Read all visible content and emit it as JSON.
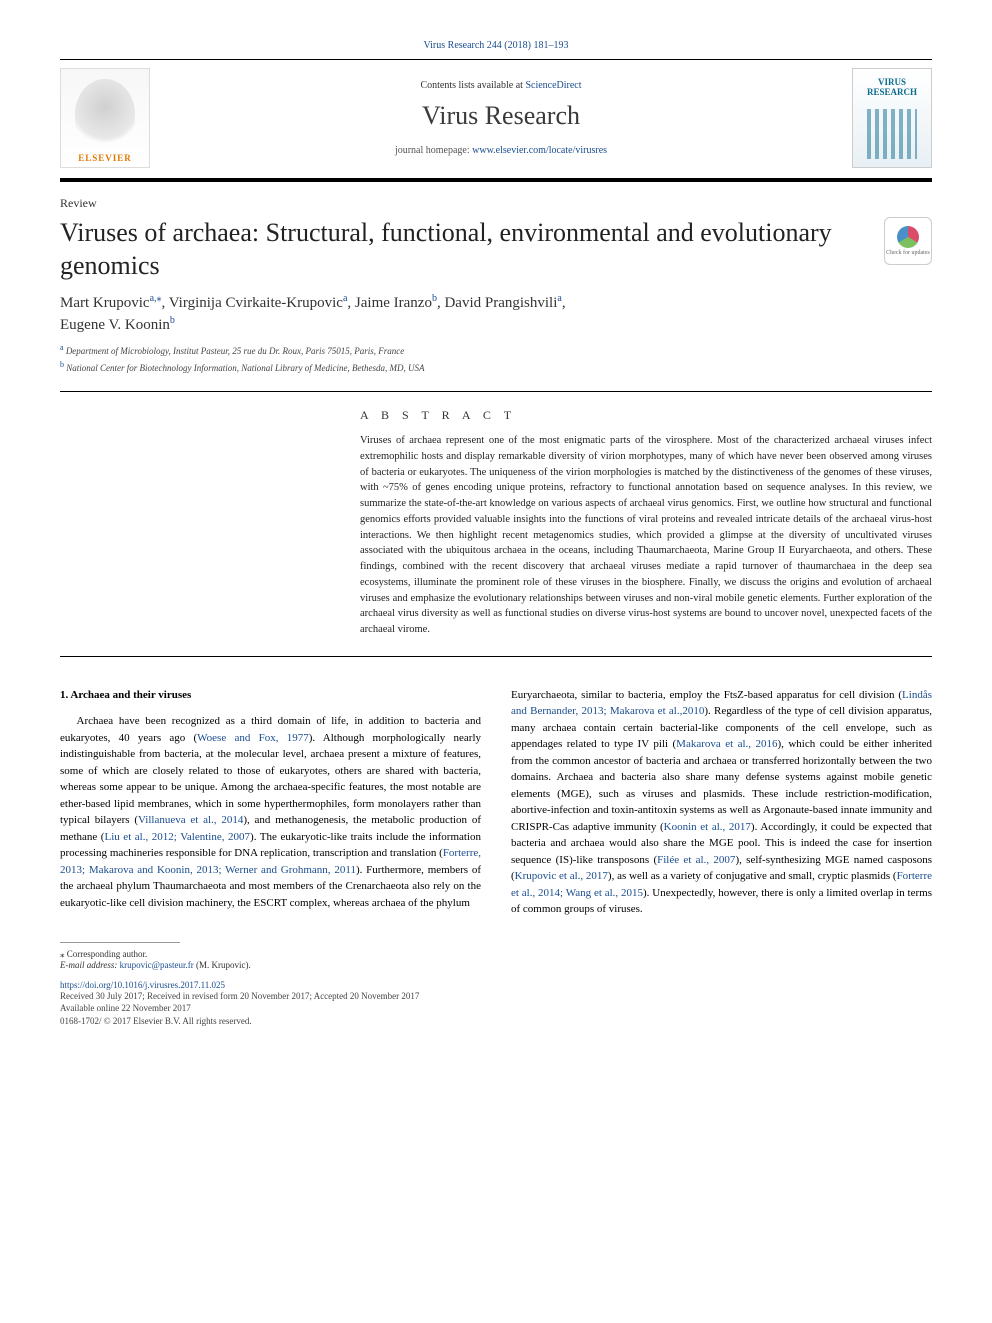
{
  "top_citation": "Virus Research 244 (2018) 181–193",
  "header": {
    "contents_text": "Contents lists available at ",
    "contents_link": "ScienceDirect",
    "journal_name": "Virus Research",
    "homepage_text": "journal homepage: ",
    "homepage_link": "www.elsevier.com/locate/virusres",
    "publisher_name": "ELSEVIER",
    "cover_line1": "VIRUS",
    "cover_line2": "RESEARCH"
  },
  "article": {
    "type": "Review",
    "title": "Viruses of archaea: Structural, functional, environmental and evolutionary genomics",
    "check_updates_label": "Check for updates"
  },
  "authors": {
    "a1_name": "Mart Krupovic",
    "a1_aff": "a,",
    "a1_corr": "⁎",
    "a2_name": ", Virginija Cvirkaite-Krupovic",
    "a2_aff": "a",
    "a3_name": ", Jaime Iranzo",
    "a3_aff": "b",
    "a4_name": ", David Prangishvili",
    "a4_aff": "a",
    "a5_name": "Eugene V. Koonin",
    "a5_aff": "b"
  },
  "affiliations": {
    "a_label": "a",
    "a_text": " Department of Microbiology, Institut Pasteur, 25 rue du Dr. Roux, Paris 75015, Paris, France",
    "b_label": "b",
    "b_text": " National Center for Biotechnology Information, National Library of Medicine, Bethesda, MD, USA"
  },
  "abstract": {
    "heading": "A B S T R A C T",
    "text": "Viruses of archaea represent one of the most enigmatic parts of the virosphere. Most of the characterized archaeal viruses infect extremophilic hosts and display remarkable diversity of virion morphotypes, many of which have never been observed among viruses of bacteria or eukaryotes. The uniqueness of the virion morphologies is matched by the distinctiveness of the genomes of these viruses, with ~75% of genes encoding unique proteins, refractory to functional annotation based on sequence analyses. In this review, we summarize the state-of-the-art knowledge on various aspects of archaeal virus genomics. First, we outline how structural and functional genomics efforts provided valuable insights into the functions of viral proteins and revealed intricate details of the archaeal virus-host interactions. We then highlight recent metagenomics studies, which provided a glimpse at the diversity of uncultivated viruses associated with the ubiquitous archaea in the oceans, including Thaumarchaeota, Marine Group II Euryarchaeota, and others. These findings, combined with the recent discovery that archaeal viruses mediate a rapid turnover of thaumarchaea in the deep sea ecosystems, illuminate the prominent role of these viruses in the biosphere. Finally, we discuss the origins and evolution of archaeal viruses and emphasize the evolutionary relationships between viruses and non-viral mobile genetic elements. Further exploration of the archaeal virus diversity as well as functional studies on diverse virus-host systems are bound to uncover novel, unexpected facets of the archaeal virome."
  },
  "body": {
    "section1_heading": "1. Archaea and their viruses",
    "col1_p1_a": "Archaea have been recognized as a third domain of life, in addition to bacteria and eukaryotes, 40 years ago (",
    "col1_cite1": "Woese and Fox, 1977",
    "col1_p1_b": "). Although morphologically nearly indistinguishable from bacteria, at the molecular level, archaea present a mixture of features, some of which are closely related to those of eukaryotes, others are shared with bacteria, whereas some appear to be unique. Among the archaea-specific features, the most notable are ether-based lipid membranes, which in some hyperthermophiles, form monolayers rather than typical bilayers (",
    "col1_cite2": "Villanueva et al., 2014",
    "col1_p1_c": "), and methanogenesis, the metabolic production of methane (",
    "col1_cite3": "Liu et al., 2012; Valentine, 2007",
    "col1_p1_d": "). The eukaryotic-like traits include the information processing machineries responsible for DNA replication, transcription and translation (",
    "col1_cite4": "Forterre, 2013; Makarova and Koonin, 2013; Werner and Grohmann, 2011",
    "col1_p1_e": "). Furthermore, members of the archaeal phylum Thaumarchaeota and most members of the Crenarchaeota also rely on the eukaryotic-like cell division machinery, the ESCRT complex, whereas archaea of the phylum",
    "col2_p1_a": "Euryarchaeota, similar to bacteria, employ the FtsZ-based apparatus for cell division (",
    "col2_cite1": "Lindås and Bernander, 2013; Makarova et al.,2010",
    "col2_p1_b": "). Regardless of the type of cell division apparatus, many archaea contain certain bacterial-like components of the cell envelope, such as appendages related to type IV pili (",
    "col2_cite2": "Makarova et al., 2016",
    "col2_p1_c": "), which could be either inherited from the common ancestor of bacteria and archaea or transferred horizontally between the two domains. Archaea and bacteria also share many defense systems against mobile genetic elements (MGE), such as viruses and plasmids. These include restriction-modification, abortive-infection and toxin-antitoxin systems as well as Argonaute-based innate immunity and CRISPR-Cas adaptive immunity (",
    "col2_cite3": "Koonin et al., 2017",
    "col2_p1_d": "). Accordingly, it could be expected that bacteria and archaea would also share the MGE pool. This is indeed the case for insertion sequence (IS)-like transposons (",
    "col2_cite4": "Filée et al., 2007",
    "col2_p1_e": "), self-synthesizing MGE named casposons (",
    "col2_cite5": "Krupovic et al., 2017",
    "col2_p1_f": "), as well as a variety of conjugative and small, cryptic plasmids (",
    "col2_cite6": "Forterre et al., 2014; Wang et al., 2015",
    "col2_p1_g": "). Unexpectedly, however, there is only a limited overlap in terms of common groups of viruses."
  },
  "footer": {
    "corr_marker": "⁎",
    "corr_text": " Corresponding author.",
    "email_label": "E-mail address: ",
    "email": "krupovic@pasteur.fr",
    "email_suffix": " (M. Krupovic).",
    "doi": "https://doi.org/10.1016/j.virusres.2017.11.025",
    "received": "Received 30 July 2017; Received in revised form 20 November 2017; Accepted 20 November 2017",
    "available": "Available online 22 November 2017",
    "copyright": "0168-1702/ © 2017 Elsevier B.V. All rights reserved."
  }
}
